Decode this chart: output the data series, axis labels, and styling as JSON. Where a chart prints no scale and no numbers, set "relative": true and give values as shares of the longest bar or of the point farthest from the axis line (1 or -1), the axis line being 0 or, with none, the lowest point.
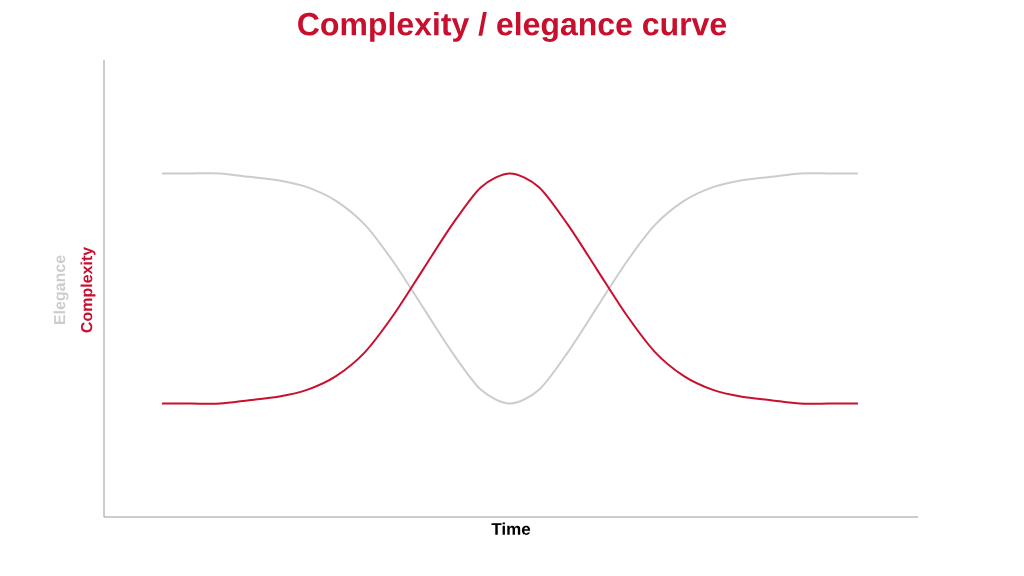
{
  "chart_data": {
    "type": "line",
    "title": "Complexity / elegance curve",
    "xlabel": "Time",
    "relative": true,
    "tick_labels": false,
    "categories": [
      null,
      null,
      null,
      null,
      null,
      null,
      null,
      null,
      null,
      null,
      null,
      null,
      null,
      null,
      null,
      null,
      null,
      null,
      null,
      null,
      null,
      null,
      null,
      null,
      null
    ],
    "series": [
      {
        "name": "Elegance",
        "color": "#cccccc",
        "values": [
          1.0,
          1.0,
          1.0,
          0.99,
          0.98,
          0.96,
          0.92,
          0.85,
          0.74,
          0.61,
          0.48,
          0.37,
          0.33,
          0.37,
          0.48,
          0.61,
          0.74,
          0.85,
          0.92,
          0.96,
          0.98,
          0.99,
          1.0,
          1.0,
          1.0
        ]
      },
      {
        "name": "Complexity",
        "color": "#c8102e",
        "values": [
          0.33,
          0.33,
          0.33,
          0.34,
          0.35,
          0.37,
          0.41,
          0.48,
          0.59,
          0.72,
          0.85,
          0.96,
          1.0,
          0.96,
          0.85,
          0.72,
          0.59,
          0.48,
          0.41,
          0.37,
          0.35,
          0.34,
          0.33,
          0.33,
          0.33
        ]
      }
    ]
  }
}
